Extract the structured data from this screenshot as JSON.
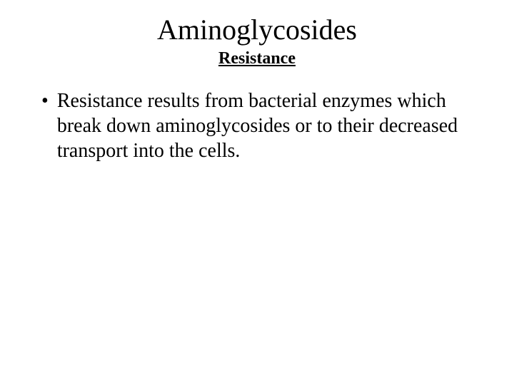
{
  "slide": {
    "title": "Aminoglycosides",
    "subtitle": "Resistance",
    "bullets": [
      {
        "marker": "•",
        "text": "Resistance results from bacterial enzymes which break down aminoglycosides or to their decreased transport into the cells."
      }
    ]
  },
  "colors": {
    "background": "#ffffff",
    "text": "#000000"
  },
  "typography": {
    "font_family": "Times New Roman",
    "title_fontsize": 40,
    "subtitle_fontsize": 24,
    "body_fontsize": 28
  }
}
